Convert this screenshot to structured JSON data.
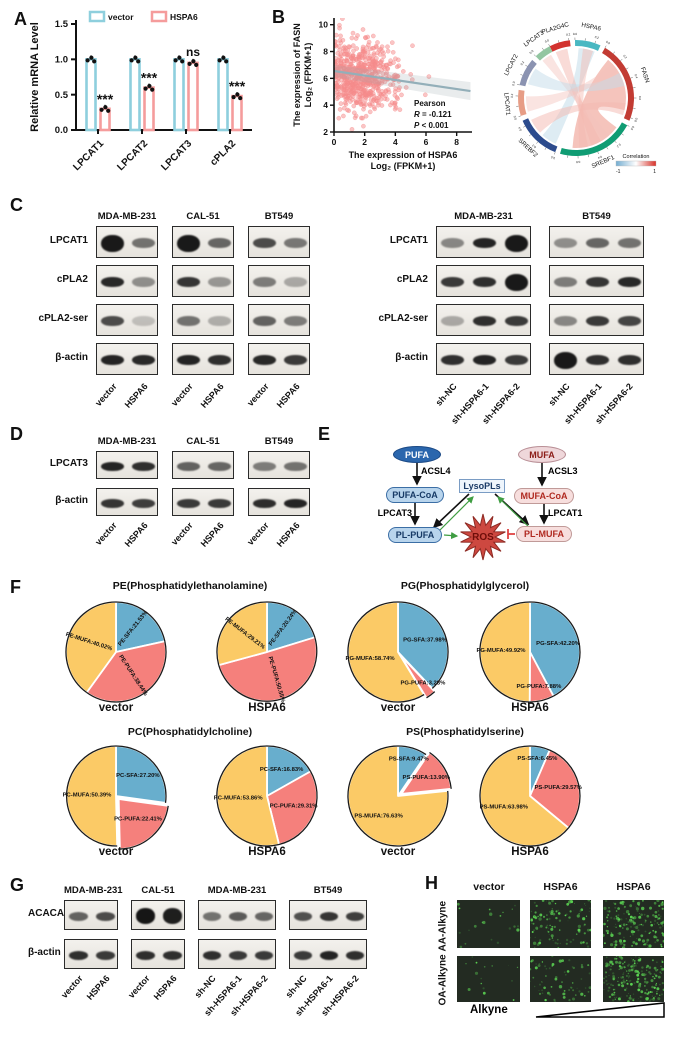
{
  "colors": {
    "vector_bar": "#8ecfdd",
    "hspa6_bar": "#f59c9c",
    "scatter_point": "#f58b8b",
    "trend_line": "#93afb9",
    "pie_sfa": "#68aecd",
    "pie_pufa": "#f5807c",
    "pie_mufa": "#fbca66",
    "fluor_bg": "#232b22",
    "fluor_dot": "#5ad152"
  },
  "panelA": {
    "label": "A",
    "chart": {
      "type": "bar",
      "ylabel": "Relative mRNA Level",
      "ylim": [
        0,
        1.5
      ],
      "yticks": [
        "0.0",
        "0.5",
        "1.0",
        "1.5"
      ],
      "categories": [
        "LPCAT1",
        "LPCAT2",
        "LPCAT3",
        "cPLA2"
      ],
      "series": [
        {
          "name": "vector",
          "values": [
            1.0,
            1.0,
            1.0,
            1.0
          ]
        },
        {
          "name": "HSPA6",
          "values": [
            0.3,
            0.6,
            0.95,
            0.48
          ]
        }
      ],
      "significance": [
        "***",
        "***",
        "ns",
        "***"
      ]
    }
  },
  "panelB": {
    "label": "B",
    "scatter": {
      "type": "scatter",
      "xlabel": [
        "The expression of HSPA6",
        "Log₂ (FPKM+1)"
      ],
      "ylabel": [
        "The expression of FASN",
        "Log₂ (FPKM+1)"
      ],
      "xticks": [
        0,
        2,
        4,
        6,
        8
      ],
      "yticks": [
        2,
        4,
        6,
        8,
        10
      ],
      "xlim": [
        0,
        9
      ],
      "ylim": [
        2,
        10.5
      ],
      "n_points": 620,
      "trend": {
        "x1": 0,
        "y1": 6.55,
        "x2": 8.9,
        "y2": 5.05
      },
      "annotation": [
        "Pearson",
        "R = -0.121",
        "P < 0.001"
      ]
    },
    "circos": {
      "legend_title": "Correlation",
      "legend_min": "-1",
      "legend_max": "1",
      "genes": [
        {
          "name": "PLA2G4C",
          "color": "#d2322e",
          "start": -27,
          "end": -6
        },
        {
          "name": "HSPA6",
          "color": "#49b8c2",
          "start": -1,
          "end": 25
        },
        {
          "name": "FASN",
          "color": "#c23b33",
          "start": 30,
          "end": 113
        },
        {
          "name": "SREBF1",
          "color": "#109c73",
          "start": 118,
          "end": 196
        },
        {
          "name": "SREBF2",
          "color": "#2c4b8d",
          "start": 201,
          "end": 247
        },
        {
          "name": "LPCAT1",
          "color": "#e79d86",
          "start": 252,
          "end": 278
        },
        {
          "name": "LPCAT2",
          "color": "#8b93b1",
          "start": 283,
          "end": 311
        },
        {
          "name": "LPCAT3",
          "color": "#93c6a1",
          "start": 316,
          "end": 333
        }
      ],
      "ribbons": [
        {
          "a": [
            40,
            104
          ],
          "b": [
            126,
            184
          ],
          "color": "#ef9c90",
          "op": 0.6
        },
        {
          "a": [
            3,
            22
          ],
          "b": [
            204,
            222
          ],
          "color": "#bdd9e8",
          "op": 0.5
        },
        {
          "a": [
            -24,
            -10
          ],
          "b": [
            150,
            162
          ],
          "color": "#f3b8b0",
          "op": 0.5
        },
        {
          "a": [
            318,
            330
          ],
          "b": [
            138,
            148
          ],
          "color": "#f3c4bd",
          "op": 0.45
        },
        {
          "a": [
            286,
            306
          ],
          "b": [
            60,
            76
          ],
          "color": "#c3dcea",
          "op": 0.5
        },
        {
          "a": [
            226,
            244
          ],
          "b": [
            96,
            110
          ],
          "color": "#f3b8b0",
          "op": 0.5
        },
        {
          "a": [
            254,
            272
          ],
          "b": [
            46,
            58
          ],
          "color": "#f3c4bd",
          "op": 0.45
        },
        {
          "a": [
            8,
            20
          ],
          "b": [
            166,
            176
          ],
          "color": "#f3b8b0",
          "op": 0.45
        }
      ]
    }
  },
  "panelC": {
    "label": "C",
    "left": {
      "rows": [
        "LPCAT1",
        "cPLA2",
        "cPLA2-ser",
        "β-actin"
      ],
      "columns": [
        {
          "header": "MDA-MB-231",
          "lanes": [
            "vector",
            "HSPA6"
          ],
          "bands": [
            [
              0.95,
              0.55
            ],
            [
              0.88,
              0.42
            ],
            [
              0.72,
              0.2
            ],
            [
              0.9,
              0.88
            ]
          ]
        },
        {
          "header": "CAL-51",
          "lanes": [
            "vector",
            "HSPA6"
          ],
          "bands": [
            [
              0.95,
              0.6
            ],
            [
              0.82,
              0.38
            ],
            [
              0.55,
              0.28
            ],
            [
              0.9,
              0.85
            ]
          ]
        },
        {
          "header": "BT549",
          "lanes": [
            "vector",
            "HSPA6"
          ],
          "bands": [
            [
              0.72,
              0.52
            ],
            [
              0.5,
              0.3
            ],
            [
              0.62,
              0.5
            ],
            [
              0.88,
              0.8
            ]
          ]
        }
      ]
    },
    "right": {
      "rows": [
        "LPCAT1",
        "cPLA2",
        "cPLA2-ser",
        "β-actin"
      ],
      "columns": [
        {
          "header": "MDA-MB-231",
          "lanes": [
            "sh-NC",
            "sh-HSPA6-1",
            "sh-HSPA6-2"
          ],
          "bands": [
            [
              0.45,
              0.9,
              0.95
            ],
            [
              0.8,
              0.85,
              0.95
            ],
            [
              0.3,
              0.85,
              0.8
            ],
            [
              0.85,
              0.9,
              0.8
            ]
          ]
        },
        {
          "header": "BT549",
          "lanes": [
            "sh-NC",
            "sh-HSPA6-1",
            "sh-HSPA6-2"
          ],
          "bands": [
            [
              0.42,
              0.6,
              0.55
            ],
            [
              0.5,
              0.82,
              0.88
            ],
            [
              0.45,
              0.8,
              0.75
            ],
            [
              0.95,
              0.85,
              0.85
            ]
          ]
        }
      ]
    }
  },
  "panelD": {
    "label": "D",
    "group": {
      "rows": [
        "LPCAT3",
        "β-actin"
      ],
      "columns": [
        {
          "header": "MDA-MB-231",
          "lanes": [
            "vector",
            "HSPA6"
          ],
          "bands": [
            [
              0.9,
              0.85
            ],
            [
              0.82,
              0.78
            ]
          ]
        },
        {
          "header": "CAL-51",
          "lanes": [
            "vector",
            "HSPA6"
          ],
          "bands": [
            [
              0.62,
              0.6
            ],
            [
              0.8,
              0.8
            ]
          ]
        },
        {
          "header": "BT549",
          "lanes": [
            "vector",
            "HSPA6"
          ],
          "bands": [
            [
              0.5,
              0.55
            ],
            [
              0.86,
              0.9
            ]
          ]
        }
      ]
    }
  },
  "panelE": {
    "label": "E",
    "nodes": {
      "pufa": "PUFA",
      "acsl4": "ACSL4",
      "pufa_coa": "PUFA-CoA",
      "lpcat3": "LPCAT3",
      "pl_pufa": "PL-PUFA",
      "lysopls": "LysoPLs",
      "ros": "ROS",
      "mufa": "MUFA",
      "acsl3": "ACSL3",
      "mufa_coa": "MUFA-CoA",
      "lpcat1": "LPCAT1",
      "pl_mufa": "PL-MUFA"
    }
  },
  "panelF": {
    "label": "F",
    "chart_data": {
      "type": "pie",
      "groups": [
        {
          "title": "PE(Phosphatidylethanolamine)",
          "pies": [
            {
              "name": "vector",
              "slices": [
                {
                  "label": "PE-SFA:21.53%",
                  "value": 21.53,
                  "type": "SFA"
                },
                {
                  "label": "PE-PUFA:38.44%",
                  "value": 38.44,
                  "type": "PUFA"
                },
                {
                  "label": "PE-MUFA:40.02%",
                  "value": 40.02,
                  "type": "MUFA"
                }
              ]
            },
            {
              "name": "HSPA6",
              "slices": [
                {
                  "label": "PE-SFA:20.24%",
                  "value": 20.24,
                  "type": "SFA"
                },
                {
                  "label": "PE-PUFA:50.55%",
                  "value": 50.55,
                  "type": "PUFA"
                },
                {
                  "label": "PE-MUFA:29.21%",
                  "value": 29.21,
                  "type": "MUFA"
                }
              ]
            }
          ]
        },
        {
          "title": "PG(Phosphatidylglycerol)",
          "pies": [
            {
              "name": "vector",
              "slices": [
                {
                  "label": "PG-SFA:37.98%",
                  "value": 37.98,
                  "type": "SFA"
                },
                {
                  "label": "PG-PUFA:3.28%",
                  "value": 3.28,
                  "type": "PUFA",
                  "explode": true
                },
                {
                  "label": "PG-MUFA:58.74%",
                  "value": 58.74,
                  "type": "MUFA"
                }
              ]
            },
            {
              "name": "HSPA6",
              "slices": [
                {
                  "label": "PG-SFA:42.20%",
                  "value": 42.2,
                  "type": "SFA"
                },
                {
                  "label": "PG-PUFA:7.88%",
                  "value": 7.88,
                  "type": "PUFA"
                },
                {
                  "label": "PG-MUFA:49.92%",
                  "value": 49.92,
                  "type": "MUFA"
                }
              ]
            }
          ]
        },
        {
          "title": "PC(Phosphatidylcholine)",
          "pies": [
            {
              "name": "vector",
              "slices": [
                {
                  "label": "PC-SFA:27.20%",
                  "value": 27.2,
                  "type": "SFA"
                },
                {
                  "label": "PC-PUFA:22.41%",
                  "value": 22.41,
                  "type": "PUFA",
                  "explode": true
                },
                {
                  "label": "PC-MUFA:50.39%",
                  "value": 50.39,
                  "type": "MUFA"
                }
              ]
            },
            {
              "name": "HSPA6",
              "slices": [
                {
                  "label": "PC-SFA:16.83%",
                  "value": 16.83,
                  "type": "SFA"
                },
                {
                  "label": "PC-PUFA:29.31%",
                  "value": 29.31,
                  "type": "PUFA"
                },
                {
                  "label": "PC-MUFA:53.86%",
                  "value": 53.86,
                  "type": "MUFA"
                }
              ]
            }
          ]
        },
        {
          "title": "PS(Phosphatidylserine)",
          "pies": [
            {
              "name": "vector",
              "slices": [
                {
                  "label": "PS-SFA:9.47%",
                  "value": 9.47,
                  "type": "SFA"
                },
                {
                  "label": "PS-PUFA:13.90%",
                  "value": 13.9,
                  "type": "PUFA",
                  "explode": true
                },
                {
                  "label": "PS-MUFA:76.63%",
                  "value": 76.63,
                  "type": "MUFA"
                }
              ]
            },
            {
              "name": "HSPA6",
              "slices": [
                {
                  "label": "PS-SFA:6.45%",
                  "value": 6.45,
                  "type": "SFA"
                },
                {
                  "label": "PS-PUFA:29.57%",
                  "value": 29.57,
                  "type": "PUFA"
                },
                {
                  "label": "PS-MUFA:63.98%",
                  "value": 63.98,
                  "type": "MUFA"
                }
              ]
            }
          ]
        }
      ]
    }
  },
  "panelG": {
    "label": "G",
    "group": {
      "rows": [
        "ACACA",
        "β-actin"
      ],
      "columns": [
        {
          "header": "MDA-MB-231",
          "lanes": [
            "vector",
            "HSPA6"
          ],
          "bands": [
            [
              0.62,
              0.72
            ],
            [
              0.85,
              0.8
            ]
          ]
        },
        {
          "header": "CAL-51",
          "lanes": [
            "vector",
            "HSPA6"
          ],
          "bands": [
            [
              0.97,
              0.93
            ],
            [
              0.85,
              0.85
            ]
          ]
        },
        {
          "header": "MDA-MB-231",
          "lanes": [
            "sh-NC",
            "sh-HSPA6-1",
            "sh-HSPA6-2"
          ],
          "bands": [
            [
              0.55,
              0.65,
              0.6
            ],
            [
              0.85,
              0.8,
              0.8
            ]
          ]
        },
        {
          "header": "BT549",
          "lanes": [
            "sh-NC",
            "sh-HSPA6-1",
            "sh-HSPA6-2"
          ],
          "bands": [
            [
              0.7,
              0.82,
              0.78
            ],
            [
              0.8,
              0.9,
              0.85
            ]
          ]
        }
      ]
    }
  },
  "panelH": {
    "label": "H",
    "col_headers": [
      "vector",
      "HSPA6",
      "HSPA6"
    ],
    "row_labels": [
      "AA-Alkyne",
      "OA-Alkyne"
    ],
    "axis_label": "Alkyne",
    "densities": [
      [
        14,
        75,
        120
      ],
      [
        10,
        45,
        140
      ]
    ]
  }
}
